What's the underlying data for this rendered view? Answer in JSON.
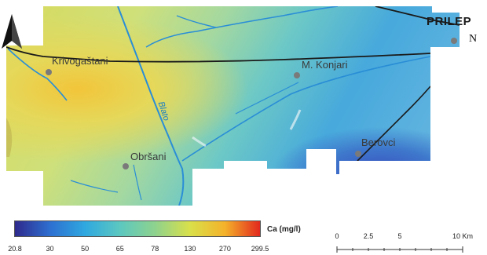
{
  "map": {
    "places": [
      {
        "name": "Krivogaštani"
      },
      {
        "name": "M. Konjari"
      },
      {
        "name": "Obršani"
      },
      {
        "name": "Berovci"
      }
    ],
    "city": "PRILEP",
    "river": "Blato",
    "north": "N"
  },
  "legend": {
    "title": "Ca (mg/l)",
    "ticks": [
      "20.8",
      "30",
      "50",
      "65",
      "78",
      "130",
      "270",
      "299.5"
    ],
    "colors": [
      "#2e2a8c",
      "#2d6fd0",
      "#2fa8e0",
      "#5cc8c0",
      "#8ed28e",
      "#d9e04a",
      "#f4b22a",
      "#e2281e"
    ]
  },
  "scale": {
    "labels": [
      "0",
      "2.5",
      "5",
      "10 Km"
    ]
  }
}
